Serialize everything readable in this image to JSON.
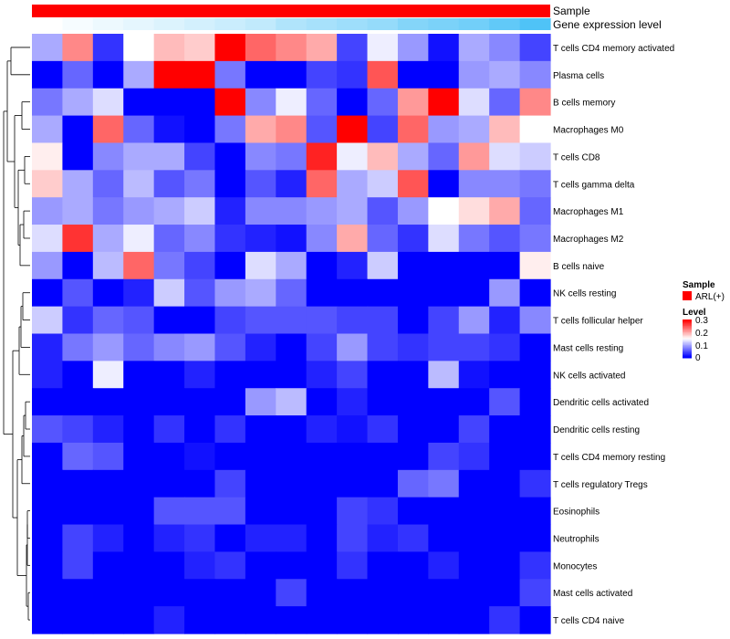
{
  "chart_data": {
    "type": "heatmap",
    "annotations": [
      {
        "name": "Sample",
        "color": "#ff0000",
        "kind": "solid"
      },
      {
        "name": "Gene expression level",
        "color_low": "#ffffff",
        "color_high": "#4fc3f7",
        "kind": "gradient"
      }
    ],
    "rows": [
      "T cells CD4 memory activated",
      "Plasma cells",
      "B cells memory",
      "Macrophages M0",
      "T cells CD8",
      "T cells gamma delta",
      "Macrophages M1",
      "Macrophages M2",
      "B cells naive",
      "NK cells resting",
      "T cells follicular helper",
      "Mast cells resting",
      "NK cells activated",
      "Dendritic cells activated",
      "Dendritic cells resting",
      "T cells CD4 memory resting",
      "T cells regulatory  Tregs",
      "Eosinophils",
      "Neutrophils",
      "Monocytes",
      "Mast cells activated",
      "T cells CD4 naive"
    ],
    "values": [
      [
        0.1,
        0.22,
        0.03,
        0.15,
        0.19,
        0.18,
        0.3,
        0.24,
        0.22,
        0.2,
        0.04,
        0.14,
        0.09,
        0.01,
        0.1,
        0.08,
        0.04
      ],
      [
        0.0,
        0.06,
        0.0,
        0.1,
        0.3,
        0.3,
        0.07,
        0.0,
        0.0,
        0.04,
        0.03,
        0.25,
        0.0,
        0.0,
        0.09,
        0.1,
        0.08
      ],
      [
        0.07,
        0.1,
        0.13,
        0.0,
        0.0,
        0.0,
        0.3,
        0.08,
        0.14,
        0.06,
        0.0,
        0.06,
        0.21,
        0.3,
        0.13,
        0.06,
        0.22
      ],
      [
        0.1,
        0.0,
        0.24,
        0.06,
        0.01,
        0.0,
        0.07,
        0.2,
        0.22,
        0.05,
        0.3,
        0.04,
        0.24,
        0.09,
        0.1,
        0.19,
        0.15
      ],
      [
        0.16,
        0.0,
        0.08,
        0.1,
        0.1,
        0.04,
        0.0,
        0.08,
        0.07,
        0.28,
        0.14,
        0.19,
        0.1,
        0.06,
        0.21,
        0.13,
        0.12
      ],
      [
        0.18,
        0.1,
        0.06,
        0.11,
        0.05,
        0.07,
        0.0,
        0.05,
        0.02,
        0.24,
        0.1,
        0.12,
        0.25,
        0.0,
        0.08,
        0.08,
        0.07
      ],
      [
        0.09,
        0.1,
        0.07,
        0.09,
        0.1,
        0.12,
        0.02,
        0.08,
        0.08,
        0.09,
        0.1,
        0.05,
        0.09,
        0.15,
        0.17,
        0.2,
        0.06
      ],
      [
        0.13,
        0.27,
        0.1,
        0.14,
        0.06,
        0.08,
        0.03,
        0.02,
        0.01,
        0.08,
        0.2,
        0.06,
        0.03,
        0.13,
        0.07,
        0.05,
        0.07
      ],
      [
        0.09,
        0.0,
        0.11,
        0.24,
        0.07,
        0.04,
        0.0,
        0.13,
        0.1,
        0.0,
        0.02,
        0.12,
        0.0,
        0.0,
        0.0,
        0.0,
        0.16
      ],
      [
        0.0,
        0.05,
        0.0,
        0.02,
        0.12,
        0.05,
        0.09,
        0.1,
        0.06,
        0.0,
        0.0,
        0.0,
        0.0,
        0.0,
        0.0,
        0.09,
        0.0
      ],
      [
        0.12,
        0.03,
        0.06,
        0.05,
        0.0,
        0.0,
        0.04,
        0.05,
        0.05,
        0.05,
        0.04,
        0.04,
        0.0,
        0.04,
        0.09,
        0.02,
        0.08
      ],
      [
        0.02,
        0.07,
        0.09,
        0.06,
        0.08,
        0.09,
        0.05,
        0.02,
        0.0,
        0.04,
        0.09,
        0.04,
        0.03,
        0.04,
        0.04,
        0.03,
        0.0
      ],
      [
        0.02,
        0.0,
        0.14,
        0.0,
        0.0,
        0.02,
        0.0,
        0.0,
        0.0,
        0.02,
        0.04,
        0.0,
        0.0,
        0.11,
        0.01,
        0.0,
        0.0
      ],
      [
        0.0,
        0.0,
        0.0,
        0.0,
        0.0,
        0.0,
        0.0,
        0.09,
        0.11,
        0.0,
        0.02,
        0.0,
        0.0,
        0.0,
        0.0,
        0.05,
        0.0
      ],
      [
        0.05,
        0.04,
        0.02,
        0.0,
        0.03,
        0.0,
        0.03,
        0.0,
        0.0,
        0.02,
        0.01,
        0.03,
        0.0,
        0.0,
        0.04,
        0.0,
        0.0
      ],
      [
        0.0,
        0.06,
        0.05,
        0.0,
        0.0,
        0.01,
        0.0,
        0.0,
        0.0,
        0.0,
        0.0,
        0.0,
        0.0,
        0.04,
        0.03,
        0.0,
        0.0
      ],
      [
        0.0,
        0.0,
        0.0,
        0.0,
        0.0,
        0.0,
        0.04,
        0.0,
        0.0,
        0.0,
        0.0,
        0.0,
        0.06,
        0.07,
        0.0,
        0.0,
        0.03
      ],
      [
        0.0,
        0.0,
        0.0,
        0.0,
        0.05,
        0.05,
        0.05,
        0.0,
        0.0,
        0.0,
        0.04,
        0.03,
        0.0,
        0.0,
        0.0,
        0.0,
        0.0
      ],
      [
        0.0,
        0.04,
        0.02,
        0.0,
        0.02,
        0.03,
        0.0,
        0.02,
        0.02,
        0.0,
        0.04,
        0.02,
        0.03,
        0.0,
        0.0,
        0.0,
        0.0
      ],
      [
        0.0,
        0.04,
        0.0,
        0.0,
        0.0,
        0.02,
        0.03,
        0.0,
        0.0,
        0.0,
        0.03,
        0.0,
        0.0,
        0.02,
        0.0,
        0.0,
        0.03
      ],
      [
        0.0,
        0.0,
        0.0,
        0.0,
        0.0,
        0.0,
        0.0,
        0.0,
        0.04,
        0.0,
        0.0,
        0.0,
        0.0,
        0.0,
        0.0,
        0.0,
        0.04
      ],
      [
        0.0,
        0.0,
        0.0,
        0.0,
        0.02,
        0.0,
        0.0,
        0.0,
        0.0,
        0.0,
        0.0,
        0.0,
        0.0,
        0.0,
        0.0,
        0.03,
        0.0
      ]
    ],
    "gene_expression_level": [
      0.0,
      0.05,
      0.1,
      0.15,
      0.2,
      0.25,
      0.3,
      0.35,
      0.45,
      0.5,
      0.55,
      0.6,
      0.7,
      0.75,
      0.8,
      0.9,
      1.0
    ],
    "color_scale": {
      "low": "#0000ff",
      "mid": "#ffffff",
      "high": "#ff0000",
      "min": 0,
      "max": 0.3
    },
    "legend": {
      "position": "right",
      "sample_title": "Sample",
      "sample_label": "ARL(+)",
      "level_title": "Level",
      "ticks": [
        "0.3",
        "0.2",
        "0.1",
        "0"
      ]
    },
    "dendrogram": "rows"
  }
}
